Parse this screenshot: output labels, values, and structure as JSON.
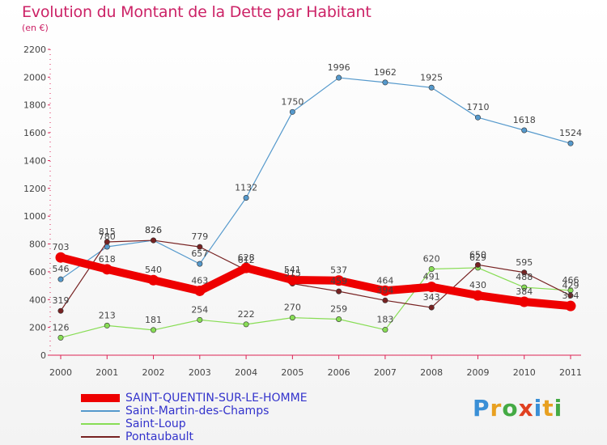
{
  "title": "Evolution du Montant de la Dette par Habitant",
  "subtitle": "(en €)",
  "logo": {
    "text": "Proxiti",
    "letters": [
      {
        "ch": "P",
        "color": "#3a8fd6"
      },
      {
        "ch": "r",
        "color": "#e8a020"
      },
      {
        "ch": "o",
        "color": "#44aa44"
      },
      {
        "ch": "x",
        "color": "#e04020"
      },
      {
        "ch": "i",
        "color": "#3a8fd6"
      },
      {
        "ch": "t",
        "color": "#e8a020"
      },
      {
        "ch": "i",
        "color": "#44aa44"
      }
    ]
  },
  "chart_data": {
    "type": "line",
    "title": "Evolution du Montant de la Dette par Habitant",
    "subtitle": "(en €)",
    "xlabel": "",
    "ylabel": "",
    "categories": [
      "2000",
      "2001",
      "2002",
      "2003",
      "2004",
      "2005",
      "2006",
      "2007",
      "2008",
      "2009",
      "2010",
      "2011"
    ],
    "ylim": [
      0,
      2200
    ],
    "yticks": [
      0,
      200,
      400,
      600,
      800,
      1000,
      1200,
      1400,
      1600,
      1800,
      2000,
      2200
    ],
    "grid": false,
    "legend_position": "bottom-left",
    "series": [
      {
        "name": "SAINT-QUENTIN-SUR-LE-HOMME",
        "color": "#ee0000",
        "strong": true,
        "values": [
          703,
          618,
          540,
          463,
          628,
          541,
          537,
          464,
          491,
          430,
          384,
          354
        ]
      },
      {
        "name": "Saint-Martin-des-Champs",
        "color": "#5599cc",
        "strong": false,
        "values": [
          546,
          780,
          826,
          657,
          1132,
          1750,
          1996,
          1962,
          1925,
          1710,
          1618,
          1524
        ]
      },
      {
        "name": "Saint-Loup",
        "color": "#88dd55",
        "strong": false,
        "values": [
          126,
          213,
          181,
          254,
          222,
          270,
          259,
          183,
          620,
          629,
          488,
          466
        ]
      },
      {
        "name": "Pontaubault",
        "color": "#772222",
        "strong": false,
        "values": [
          319,
          815,
          826,
          779,
          612,
          515,
          459,
          394,
          343,
          650,
          595,
          429
        ]
      }
    ]
  }
}
